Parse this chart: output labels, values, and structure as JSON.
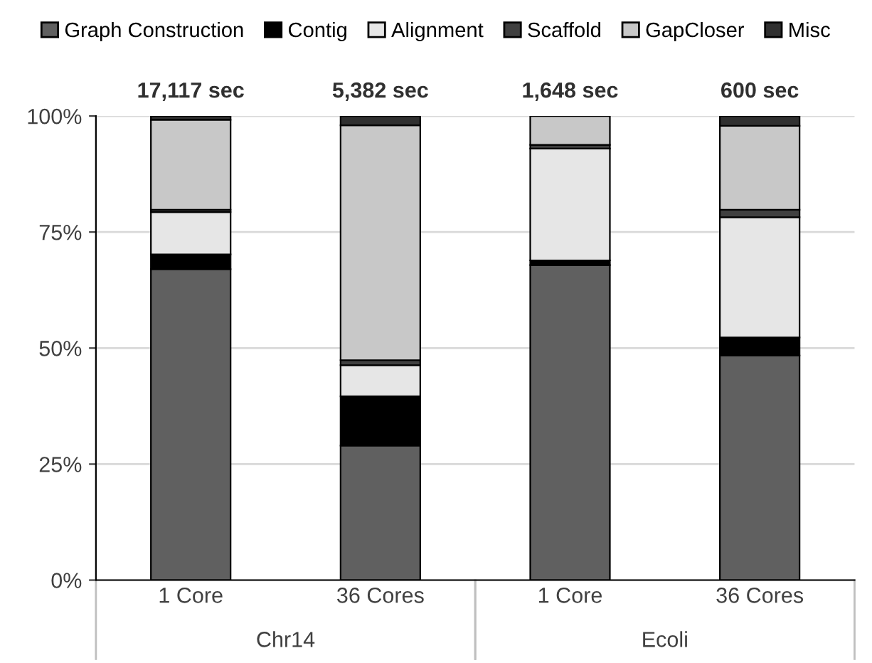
{
  "chart_data": {
    "type": "bar",
    "stacked": true,
    "categories": [
      "1 Core",
      "36 Cores",
      "1 Core",
      "36 Cores"
    ],
    "series": [
      {
        "name": "Graph Construction",
        "color": "#606060",
        "values": [
          67.0,
          29.0,
          67.9,
          48.4
        ]
      },
      {
        "name": "Contig",
        "color": "#000000",
        "values": [
          3.2,
          10.6,
          1.0,
          3.9
        ]
      },
      {
        "name": "Alignment",
        "color": "#e6e6e6",
        "values": [
          9.1,
          6.7,
          24.1,
          25.9
        ]
      },
      {
        "name": "Scaffold",
        "color": "#404040",
        "values": [
          0.5,
          1.1,
          0.8,
          1.6
        ]
      },
      {
        "name": "GapCloser",
        "color": "#c8c8c8",
        "values": [
          19.4,
          50.6,
          6.2,
          18.1
        ]
      },
      {
        "name": "Misc",
        "color": "#303030",
        "values": [
          0.8,
          2.0,
          null,
          2.1
        ]
      }
    ],
    "annotations": [
      "17,117 sec",
      "5,382 sec",
      "1,648 sec",
      "600 sec",
      "Chr14",
      "Ecoli"
    ],
    "ylim": [
      0,
      100
    ],
    "yticks": [
      {
        "value": 0,
        "label": "0%"
      },
      {
        "value": 25,
        "label": "25%"
      },
      {
        "value": 50,
        "label": "50%"
      },
      {
        "value": 75,
        "label": "75%"
      },
      {
        "value": 100,
        "label": "100%"
      }
    ],
    "grid": "y",
    "legend": "top"
  }
}
